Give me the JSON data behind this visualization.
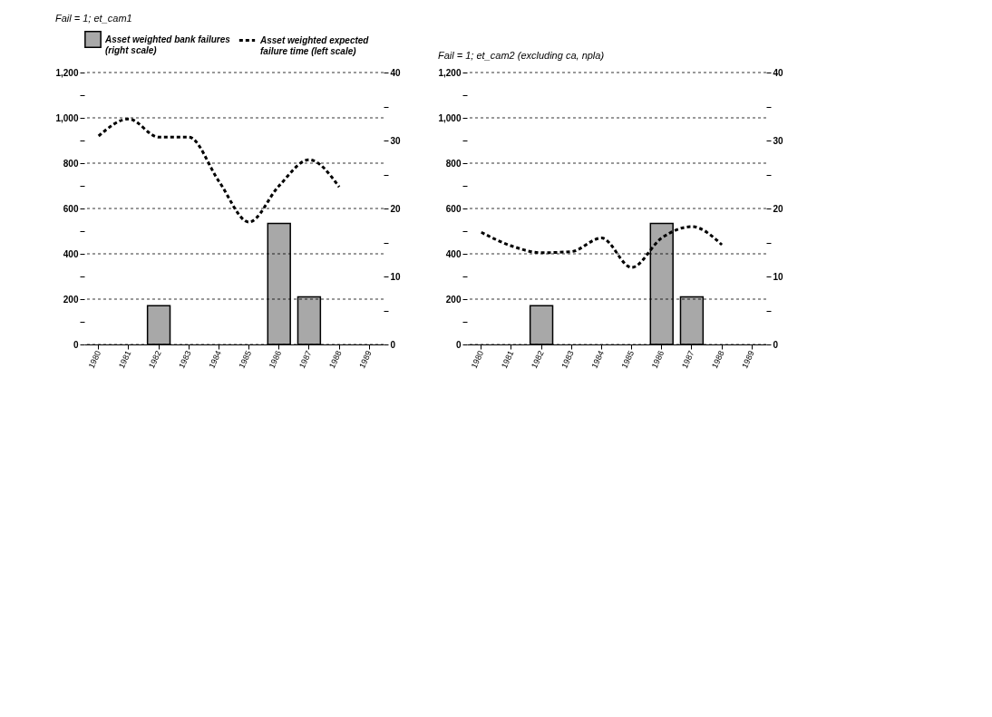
{
  "chart_data": [
    {
      "type": "bar",
      "title": "Fail = 1;   et_cam1",
      "categories": [
        "1980",
        "1981",
        "1982",
        "1983",
        "1984",
        "1985",
        "1986",
        "1987",
        "1988",
        "1989"
      ],
      "series": [
        {
          "name": "Asset weighted bank failures\n(right scale)",
          "axis": "y2",
          "color": "#a8a8a8",
          "values": [
            null,
            null,
            5.7,
            null,
            null,
            null,
            17.8,
            7.0,
            null,
            null
          ]
        },
        {
          "name": "Asset weighted expected\nfailure time  (left scale)",
          "type": "line",
          "line_style": "dashed",
          "color": "#000000",
          "values": [
            920,
            995,
            915,
            915,
            720,
            540,
            700,
            815,
            695,
            null
          ]
        }
      ],
      "ylim": [
        0,
        1200
      ],
      "yticks": [
        0,
        {
          "value": 100,
          "label": null
        },
        200,
        {
          "value": 300,
          "label": null
        },
        400,
        {
          "value": 500,
          "label": null
        },
        600,
        {
          "value": 700,
          "label": null
        },
        800,
        {
          "value": 900,
          "label": null
        },
        {
          "value": 1000,
          "label": "1,000"
        },
        {
          "value": 1100,
          "label": null
        },
        {
          "value": 1200,
          "label": "1,200"
        }
      ],
      "y2lim": [
        0,
        40
      ],
      "y2ticks": [
        0,
        {
          "value": 5,
          "label": null
        },
        10,
        {
          "value": 15,
          "label": null
        },
        20,
        {
          "value": 25,
          "label": null
        },
        30,
        {
          "value": 35,
          "label": null
        },
        40
      ],
      "grid": "y",
      "legend": "top"
    },
    {
      "type": "bar",
      "title": "Fail = 1;   et_cam2 (excluding ca, npla)",
      "categories": [
        "1980",
        "1981",
        "1982",
        "1983",
        "1984",
        "1985",
        "1986",
        "1987",
        "1988",
        "1989"
      ],
      "series": [
        {
          "axis": "y2",
          "color": "#a8a8a8",
          "values": [
            null,
            null,
            5.7,
            null,
            null,
            null,
            17.8,
            7.0,
            null,
            null
          ]
        },
        {
          "type": "line",
          "line_style": "dashed",
          "color": "#000000",
          "values": [
            495,
            435,
            405,
            410,
            470,
            340,
            470,
            520,
            440,
            null
          ]
        }
      ],
      "ylim": [
        0,
        1200
      ],
      "yticks": [
        0,
        {
          "value": 100,
          "label": null
        },
        200,
        {
          "value": 300,
          "label": null
        },
        400,
        {
          "value": 500,
          "label": null
        },
        600,
        {
          "value": 700,
          "label": null
        },
        800,
        {
          "value": 900,
          "label": null
        },
        {
          "value": 1000,
          "label": "1,000"
        },
        {
          "value": 1100,
          "label": null
        },
        {
          "value": 1200,
          "label": "1,200"
        }
      ],
      "y2lim": [
        0,
        40
      ],
      "y2ticks": [
        0,
        {
          "value": 5,
          "label": null
        },
        10,
        {
          "value": 15,
          "label": null
        },
        20,
        {
          "value": 25,
          "label": null
        },
        30,
        {
          "value": 35,
          "label": null
        },
        40
      ],
      "grid": "y",
      "legend": false
    }
  ]
}
